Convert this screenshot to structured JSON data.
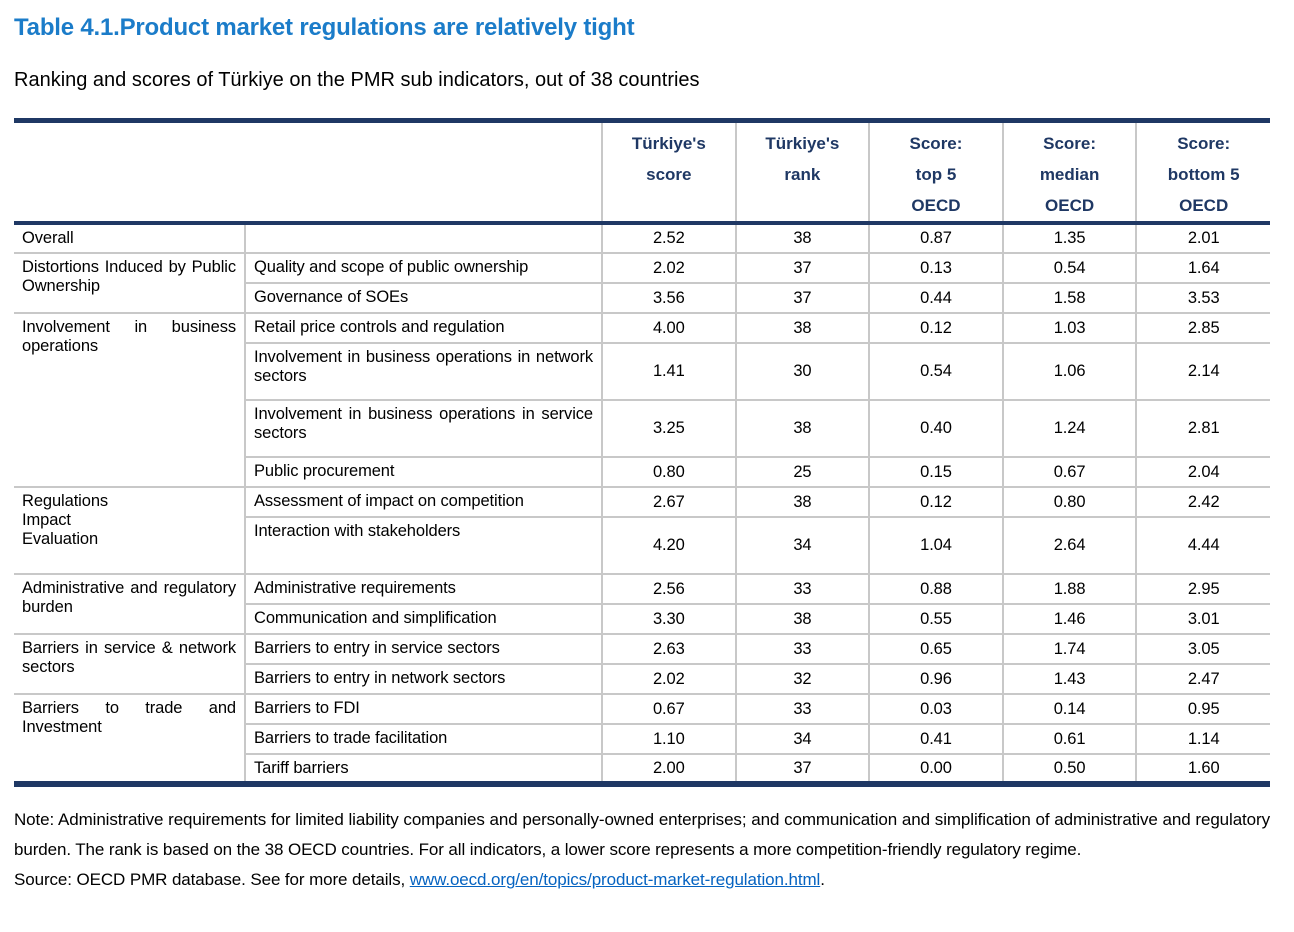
{
  "title": "Table 4.1.Product market regulations are relatively tight",
  "subtitle": "Ranking and scores of Türkiye on the PMR sub indicators, out of 38 countries",
  "colors": {
    "title_blue": "#1B7CC9",
    "header_navy": "#1F3864",
    "grid_gray": "#C8C8C8",
    "link_blue": "#0563C1"
  },
  "table": {
    "header": {
      "turkiye_score": "Türkiye's\nscore",
      "turkiye_rank": "Türkiye's\nrank",
      "score_top5": "Score:\ntop 5\nOECD",
      "score_median": "Score:\nmedian\nOECD",
      "score_bottom5": "Score:\nbottom 5\nOECD"
    },
    "groups": [
      {
        "label": "Overall",
        "rows": [
          {
            "indicator": "",
            "score": "2.52",
            "rank": "38",
            "top5": "0.87",
            "median": "1.35",
            "bottom5": "2.01"
          }
        ]
      },
      {
        "label": "Distortions Induced by Public Ownership",
        "rows": [
          {
            "indicator": "Quality and scope of public ownership",
            "score": "2.02",
            "rank": "37",
            "top5": "0.13",
            "median": "0.54",
            "bottom5": "1.64"
          },
          {
            "indicator": "Governance of SOEs",
            "score": "3.56",
            "rank": "37",
            "top5": "0.44",
            "median": "1.58",
            "bottom5": "3.53"
          }
        ]
      },
      {
        "label": "Involvement in business operations",
        "rows": [
          {
            "indicator": "Retail price controls and regulation",
            "score": "4.00",
            "rank": "38",
            "top5": "0.12",
            "median": "1.03",
            "bottom5": "2.85"
          },
          {
            "indicator": "Involvement in business operations in network sectors",
            "score": "1.41",
            "rank": "30",
            "top5": "0.54",
            "median": "1.06",
            "bottom5": "2.14",
            "tall": true
          },
          {
            "indicator": "Involvement in business operations in service sectors",
            "score": "3.25",
            "rank": "38",
            "top5": "0.40",
            "median": "1.24",
            "bottom5": "2.81",
            "tall": true
          },
          {
            "indicator": "Public procurement",
            "score": "0.80",
            "rank": "25",
            "top5": "0.15",
            "median": "0.67",
            "bottom5": "2.04"
          }
        ]
      },
      {
        "label": "Regulations\nImpact\nEvaluation",
        "rows": [
          {
            "indicator": "Assessment of impact on competition",
            "score": "2.67",
            "rank": "38",
            "top5": "0.12",
            "median": "0.80",
            "bottom5": "2.42"
          },
          {
            "indicator": "Interaction with stakeholders",
            "score": "4.20",
            "rank": "34",
            "top5": "1.04",
            "median": "2.64",
            "bottom5": "4.44",
            "tall": true
          }
        ]
      },
      {
        "label": "Administrative and regulatory burden",
        "rows": [
          {
            "indicator": "Administrative requirements",
            "score": "2.56",
            "rank": "33",
            "top5": "0.88",
            "median": "1.88",
            "bottom5": "2.95"
          },
          {
            "indicator": "Communication and simplification",
            "score": "3.30",
            "rank": "38",
            "top5": "0.55",
            "median": "1.46",
            "bottom5": "3.01"
          }
        ]
      },
      {
        "label": "Barriers in service & network sectors",
        "rows": [
          {
            "indicator": "Barriers to entry in service sectors",
            "score": "2.63",
            "rank": "33",
            "top5": "0.65",
            "median": "1.74",
            "bottom5": "3.05"
          },
          {
            "indicator": "Barriers to entry in network sectors",
            "score": "2.02",
            "rank": "32",
            "top5": "0.96",
            "median": "1.43",
            "bottom5": "2.47"
          }
        ]
      },
      {
        "label": "Barriers to trade and Investment",
        "rows": [
          {
            "indicator": "Barriers to FDI",
            "score": "0.67",
            "rank": "33",
            "top5": "0.03",
            "median": "0.14",
            "bottom5": "0.95"
          },
          {
            "indicator": "Barriers to trade facilitation",
            "score": "1.10",
            "rank": "34",
            "top5": "0.41",
            "median": "0.61",
            "bottom5": "1.14"
          },
          {
            "indicator": "Tariff barriers",
            "score": "2.00",
            "rank": "37",
            "top5": "0.00",
            "median": "0.50",
            "bottom5": "1.60"
          }
        ]
      }
    ]
  },
  "note": "Note: Administrative requirements for limited liability companies and personally-owned enterprises; and communication and simplification of administrative and regulatory burden. The rank is based on the 38 OECD countries. For all indicators, a lower score represents a more competition-friendly regulatory regime.",
  "source": {
    "prefix": "Source: OECD PMR database. See for more details, ",
    "link_text": "www.oecd.org/en/topics/product-market-regulation.html",
    "suffix": "."
  }
}
